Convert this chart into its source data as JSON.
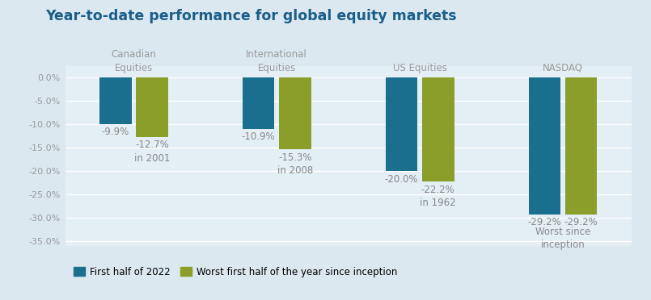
{
  "title": "Year-to-date performance for global equity markets",
  "title_color": "#1a5e8a",
  "background_color": "#dce8f0",
  "plot_background_color": "#e4eef5",
  "categories": [
    "Canadian\nEquities",
    "International\nEquities",
    "US Equities",
    "NASDAQ"
  ],
  "values_2022": [
    -9.9,
    -10.9,
    -20.0,
    -29.2
  ],
  "values_worst": [
    -12.7,
    -15.3,
    -22.2,
    -29.2
  ],
  "labels_2022": [
    "-9.9%",
    "-10.9%",
    "-20.0%",
    "-29.2%"
  ],
  "labels_worst_val": [
    "-12.7%",
    "-15.3%",
    "-22.2%",
    "-29.2%"
  ],
  "labels_worst_sub": [
    "in 2001",
    "in 2008",
    "in 1962",
    "Worst since\ninception"
  ],
  "color_2022": "#1a6e8e",
  "color_worst": "#8c9e2a",
  "ylim": [
    -36,
    2.5
  ],
  "yticks": [
    0,
    -5,
    -10,
    -15,
    -20,
    -25,
    -30,
    -35
  ],
  "ytick_labels": [
    "0.0%",
    "-5.0%",
    "-10.0%",
    "-15.0%",
    "-20.0%",
    "-25.0%",
    "-30.0%",
    "-35.0%"
  ],
  "legend_label_2022": "First half of 2022",
  "legend_label_worst": "Worst first half of the year since inception",
  "bar_width": 0.28,
  "x_positions": [
    0.5,
    1.75,
    3.0,
    4.25
  ]
}
